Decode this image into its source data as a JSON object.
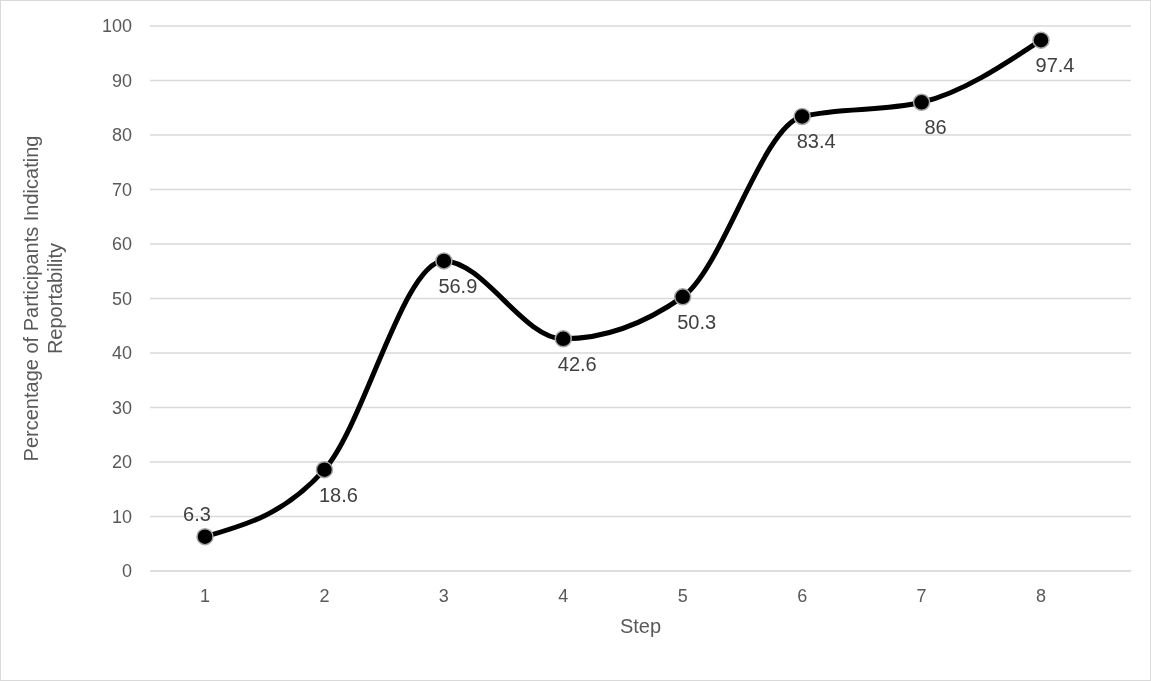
{
  "chart_data": {
    "type": "line",
    "xlabel": "Step",
    "ylabel": "Percentage of Participants Indicating Reportability",
    "categories": [
      "1",
      "2",
      "3",
      "4",
      "5",
      "6",
      "7",
      "8"
    ],
    "values": [
      6.3,
      18.6,
      56.9,
      42.6,
      50.3,
      83.4,
      86,
      97.4
    ],
    "color": "#000000",
    "ylim": [
      0,
      100
    ],
    "yticks": [
      0,
      10,
      20,
      30,
      40,
      50,
      60,
      70,
      80,
      90,
      100
    ],
    "grid": "y",
    "marker": "circle",
    "line_style": "solid",
    "data_labels": true
  }
}
